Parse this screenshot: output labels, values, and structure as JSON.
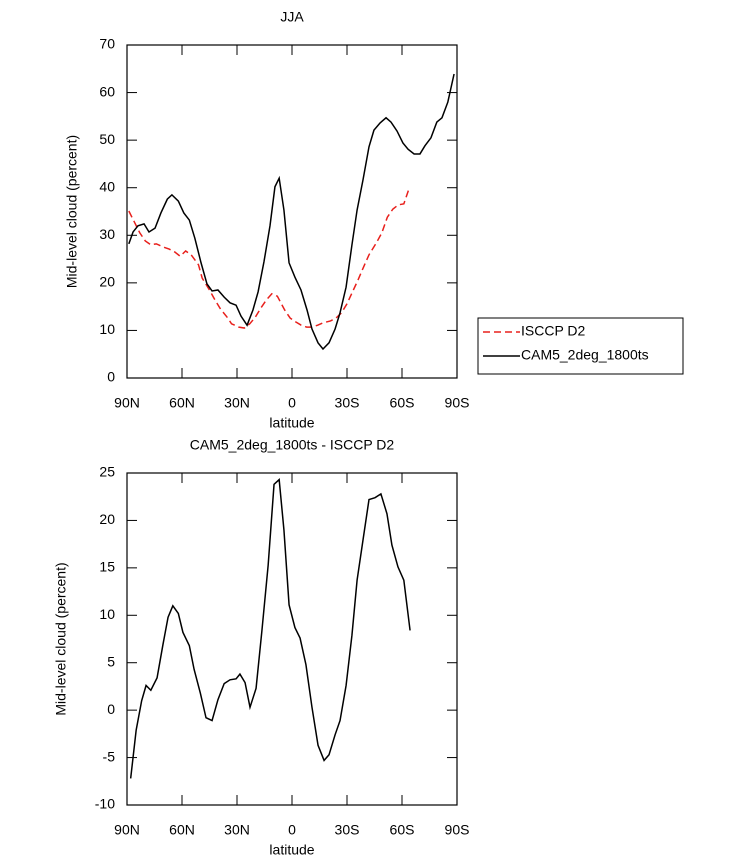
{
  "chart_data": [
    {
      "type": "line",
      "title": "JJA",
      "xlabel": "latitude",
      "ylabel": "Mid-level cloud (percent)",
      "xlim": [
        90,
        -90
      ],
      "xticks": [
        {
          "value": 90,
          "label": "90N"
        },
        {
          "value": 60,
          "label": "60N"
        },
        {
          "value": 30,
          "label": "30N"
        },
        0,
        {
          "value": -30,
          "label": "30S"
        },
        {
          "value": -60,
          "label": "60S"
        },
        {
          "value": -90,
          "label": "90S"
        }
      ],
      "ylim": [
        0,
        70
      ],
      "yticks": [
        0,
        10,
        20,
        30,
        40,
        50,
        60,
        70
      ],
      "legend_position": "outside right",
      "series": [
        {
          "name": "ISCCP D2",
          "color": "#e8201c",
          "dash": true,
          "x": [
            89,
            86,
            83,
            80,
            77,
            74,
            70,
            67,
            64,
            61,
            58,
            55,
            51,
            49,
            45,
            42,
            39,
            35,
            33,
            29,
            26,
            23,
            20,
            17,
            14,
            11,
            8,
            4,
            1,
            -2,
            -5,
            -8,
            -11,
            -14,
            -17,
            -21,
            -24,
            -27,
            -30,
            -33,
            -36,
            -39,
            -42,
            -46,
            -49,
            -52,
            -55,
            -58,
            -61,
            -64
          ],
          "values": [
            35.1,
            32.8,
            30.5,
            28.8,
            28,
            28.2,
            27.5,
            27.1,
            26.5,
            25.6,
            26.7,
            25.9,
            23.8,
            21,
            18.5,
            16.4,
            14.5,
            12.6,
            11.4,
            10.7,
            10.5,
            11.4,
            12.8,
            14.7,
            16.4,
            17.7,
            17.2,
            14.3,
            12.6,
            11.8,
            11.1,
            10.7,
            10.7,
            11.1,
            11.6,
            12,
            12.6,
            13.7,
            15.6,
            18.1,
            20.6,
            23.3,
            25.9,
            28.4,
            30.5,
            33.8,
            35.5,
            36.4,
            36.6,
            40
          ]
        },
        {
          "name": "CAM5_2deg_1800ts",
          "color": "#000000",
          "dash": false,
          "x": [
            89,
            86.7,
            84,
            80.7,
            78,
            74.7,
            71.5,
            68,
            65.5,
            62,
            59,
            56,
            53,
            49.6,
            46.4,
            43.6,
            40.4,
            37,
            33.8,
            30.5,
            27.8,
            24.5,
            21.3,
            18.5,
            15.3,
            12,
            9.3,
            7,
            4.4,
            1.6,
            -1.6,
            -4.9,
            -8.2,
            -10.9,
            -14.2,
            -16.9,
            -20.2,
            -23.5,
            -26.2,
            -29.5,
            -32.7,
            -35.5,
            -38.7,
            -42,
            -44.7,
            -48,
            -51.3,
            -54,
            -57.3,
            -60.5,
            -63.3,
            -66.6,
            -69.8,
            -72.5,
            -75.8,
            -79,
            -81.8,
            -85,
            -88.4
          ],
          "values": [
            28.2,
            30.7,
            32,
            32.4,
            30.7,
            31.5,
            34.7,
            37.6,
            38.5,
            37.2,
            34.7,
            33.2,
            29.4,
            24.2,
            19.8,
            18.3,
            18.5,
            17,
            15.8,
            15.3,
            13,
            11.1,
            14.3,
            18.1,
            24.4,
            32,
            40.2,
            42,
            35.3,
            24.2,
            21.2,
            18.5,
            14.3,
            10.3,
            7.4,
            6.1,
            7.4,
            10.3,
            13.7,
            19.1,
            28,
            35.3,
            41.6,
            48.6,
            52.1,
            53.6,
            54.7,
            53.8,
            51.9,
            49.4,
            48.1,
            47.1,
            47.1,
            48.8,
            50.5,
            53.8,
            54.7,
            58,
            63.9
          ]
        }
      ]
    },
    {
      "type": "line",
      "title": "CAM5_2deg_1800ts - ISCCP D2",
      "xlabel": "latitude",
      "ylabel": "Mid-level cloud (percent)",
      "xlim": [
        90,
        -90
      ],
      "xticks": [
        {
          "value": 90,
          "label": "90N"
        },
        {
          "value": 60,
          "label": "60N"
        },
        {
          "value": 30,
          "label": "30N"
        },
        0,
        {
          "value": -30,
          "label": "30S"
        },
        {
          "value": -60,
          "label": "60S"
        },
        {
          "value": -90,
          "label": "90S"
        }
      ],
      "ylim": [
        -10,
        25
      ],
      "yticks": [
        -10,
        -5,
        0,
        5,
        10,
        15,
        20,
        25
      ],
      "series": [
        {
          "color": "#000000",
          "dash": false,
          "x": [
            88,
            85,
            82,
            79.6,
            77,
            73.6,
            70.4,
            67.6,
            65,
            62,
            59.5,
            56,
            53.4,
            50,
            46.9,
            43.6,
            40.4,
            37,
            33.8,
            30.5,
            28.4,
            25.6,
            22.9,
            19.6,
            16.4,
            13,
            9.8,
            7,
            4.4,
            1.6,
            -1.6,
            -4.4,
            -7.6,
            -10.9,
            -14.2,
            -17.5,
            -20.2,
            -23.5,
            -26.2,
            -29.5,
            -32.7,
            -35.5,
            -38.7,
            -42,
            -45.3,
            -48.5,
            -51.8,
            -54.5,
            -57.8,
            -61,
            -64.4
          ],
          "values": [
            -7.2,
            -2.1,
            1,
            2.6,
            2.1,
            3.4,
            6.9,
            9.8,
            11,
            10.2,
            8.2,
            6.8,
            4.3,
            1.8,
            -0.8,
            -1.1,
            1.1,
            2.8,
            3.2,
            3.3,
            3.8,
            2.9,
            0.3,
            2.3,
            8.4,
            15.3,
            23.8,
            24.3,
            19,
            11.1,
            8.7,
            7.6,
            4.8,
            0.3,
            -3.7,
            -5.3,
            -4.7,
            -2.6,
            -1.1,
            2.6,
            7.9,
            13.7,
            17.9,
            22.2,
            22.4,
            22.8,
            20.7,
            17.4,
            15.1,
            13.7,
            8.4
          ]
        }
      ]
    }
  ]
}
